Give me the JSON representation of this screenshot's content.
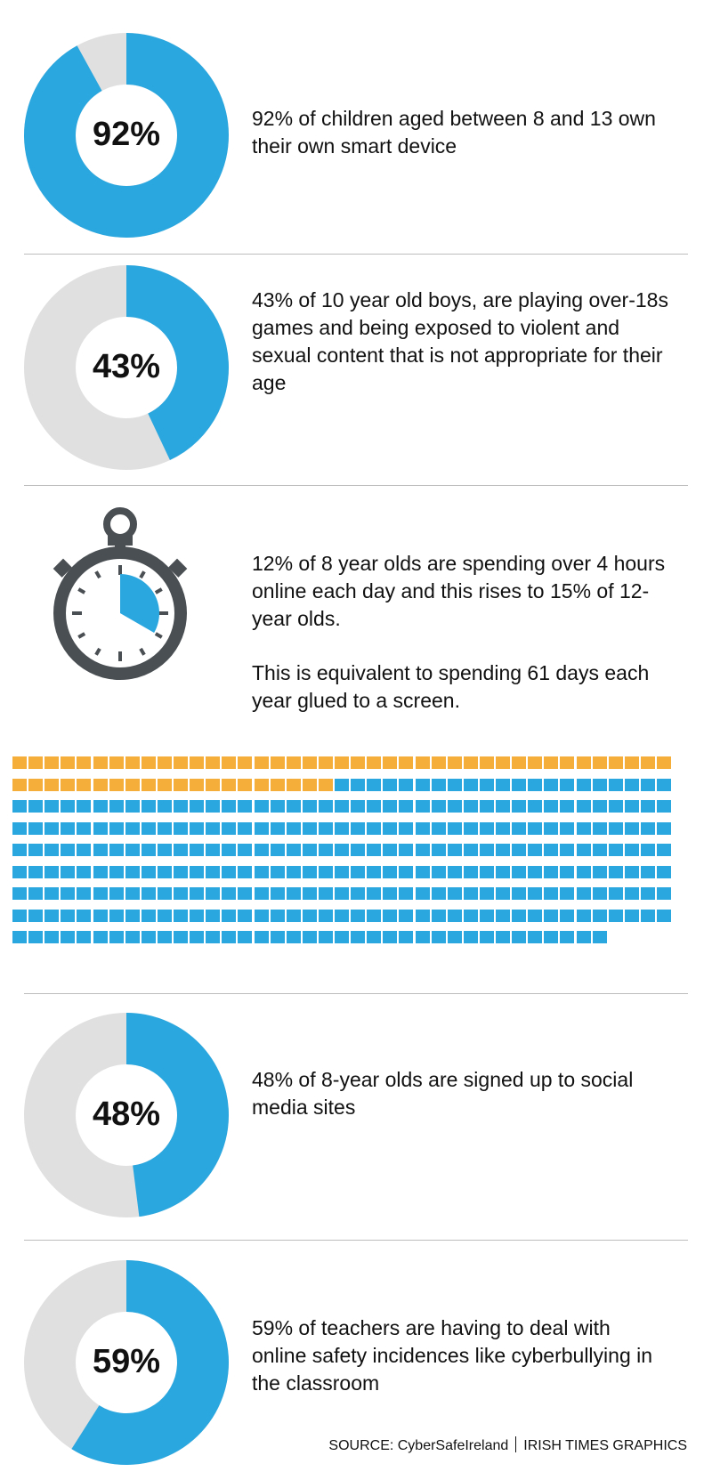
{
  "colors": {
    "accent_blue": "#2ba7df",
    "ring_grey": "#e0e0e0",
    "orange": "#f5ae3a",
    "stopwatch": "#4a4f53"
  },
  "chart_data": [
    {
      "type": "pie",
      "subtype": "donut",
      "value": 92,
      "label": "92%",
      "text": "92% of children aged between 8 and 13 own their own smart device"
    },
    {
      "type": "pie",
      "subtype": "donut",
      "value": 43,
      "label": "43%",
      "text": "43% of 10 year old boys, are playing over-18s games and being exposed to violent and sexual content that is not appropriate for their age"
    },
    {
      "type": "pie",
      "subtype": "stopwatch",
      "value": 4,
      "max": 12,
      "icon": "stopwatch-icon",
      "text": "12% of 8 year olds are spending over 4 hours online each day and this rises to 15% of 12-year olds.",
      "text2": "This is equivalent to spending 61 days each year glued to a screen."
    },
    {
      "type": "waffle",
      "total": 365,
      "highlighted": 61,
      "highlight_color": "#f5ae3a",
      "base_color": "#2ba7df",
      "per_row": 41
    },
    {
      "type": "pie",
      "subtype": "donut",
      "value": 48,
      "label": "48%",
      "text": "48% of 8-year olds are signed up to social media sites"
    },
    {
      "type": "pie",
      "subtype": "donut",
      "value": 59,
      "label": "59%",
      "text": "59% of teachers are having to deal with online safety incidences like cyberbullying in the classroom"
    }
  ],
  "source": {
    "label": "SOURCE: CyberSafeIreland",
    "credit": "IRISH TIMES GRAPHICS"
  }
}
